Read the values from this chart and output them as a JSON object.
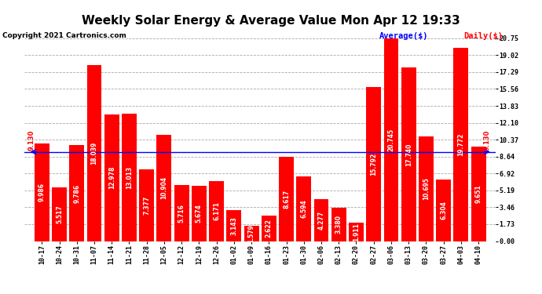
{
  "title": "Weekly Solar Energy & Average Value Mon Apr 12 19:33",
  "copyright": "Copyright 2021 Cartronics.com",
  "categories": [
    "10-17",
    "10-24",
    "10-31",
    "11-07",
    "11-14",
    "11-21",
    "11-28",
    "12-05",
    "12-12",
    "12-19",
    "12-26",
    "01-02",
    "01-09",
    "01-16",
    "01-23",
    "01-30",
    "02-06",
    "02-13",
    "02-20",
    "02-27",
    "03-06",
    "03-13",
    "03-20",
    "03-27",
    "04-03",
    "04-10"
  ],
  "values": [
    9.986,
    5.517,
    9.786,
    18.039,
    12.978,
    13.013,
    7.377,
    10.904,
    5.716,
    5.674,
    6.171,
    3.143,
    1.579,
    2.622,
    8.617,
    6.594,
    4.277,
    3.38,
    1.911,
    15.792,
    20.745,
    17.74,
    10.695,
    6.304,
    19.772,
    9.651
  ],
  "average": 9.13,
  "bar_color": "#ff0000",
  "average_line_color": "#0000ff",
  "background_color": "#ffffff",
  "grid_color": "#aaaaaa",
  "yticks_right": [
    0.0,
    1.73,
    3.46,
    5.19,
    6.92,
    8.64,
    10.37,
    12.1,
    13.83,
    15.56,
    17.29,
    19.02,
    20.75
  ],
  "avg_label": "Average($)",
  "daily_label": "Daily($)",
  "avg_label_color": "#0000ff",
  "daily_label_color": "#ff0000",
  "avg_annotation": "9.130",
  "title_fontsize": 11,
  "label_fontsize": 6,
  "bar_label_fontsize": 5.5,
  "copyright_fontsize": 6.5
}
